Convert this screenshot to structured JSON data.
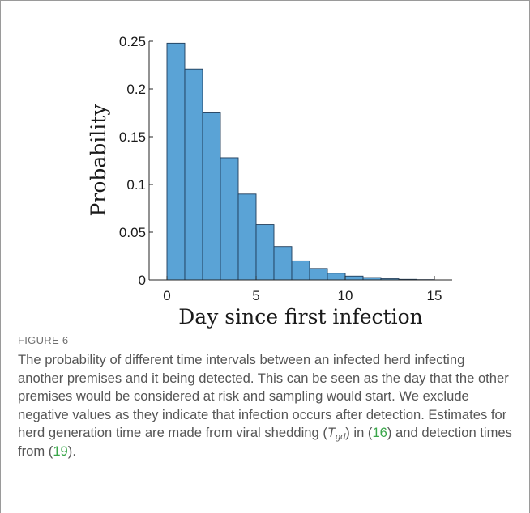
{
  "chart_data": {
    "type": "bar",
    "xlabel": "Day since first infection",
    "ylabel": "Probability",
    "xlim": [
      -1,
      16
    ],
    "ylim": [
      0,
      0.25
    ],
    "x_ticks": [
      0,
      5,
      10,
      15
    ],
    "y_ticks": [
      0,
      0.05,
      0.1,
      0.15,
      0.2,
      0.25
    ],
    "x_tick_labels": [
      "0",
      "5",
      "10",
      "15"
    ],
    "y_tick_labels": [
      "0",
      "0.05",
      "0.1",
      "0.15",
      "0.2",
      "0.25"
    ],
    "bin_width": 1,
    "bins_start": [
      0,
      1,
      2,
      3,
      4,
      5,
      6,
      7,
      8,
      9,
      10,
      11,
      12,
      13,
      14
    ],
    "values": [
      0.248,
      0.221,
      0.175,
      0.128,
      0.09,
      0.058,
      0.035,
      0.02,
      0.012,
      0.007,
      0.004,
      0.0025,
      0.0012,
      0.0006,
      0.0003
    ],
    "grid": false,
    "bar_color": "#5aa3d6",
    "edge_color": "#1f3c5a"
  },
  "caption": {
    "label": "FIGURE 6",
    "text_before_sub": "The probability of different time intervals between an infected herd infecting another premises and it being detected. This can be seen as the day that the other premises would be considered at risk and sampling would start. We exclude negative values as they indicate that infection occurs after detection. Estimates for herd generation time are made from viral shedding (",
    "symbol": "T",
    "subscript": "gd",
    "text_mid1": ") in (",
    "ref1": "16",
    "text_mid2": ") and detection times from (",
    "ref2": "19",
    "text_end": ").",
    "ref_color": "#3aa64a"
  }
}
